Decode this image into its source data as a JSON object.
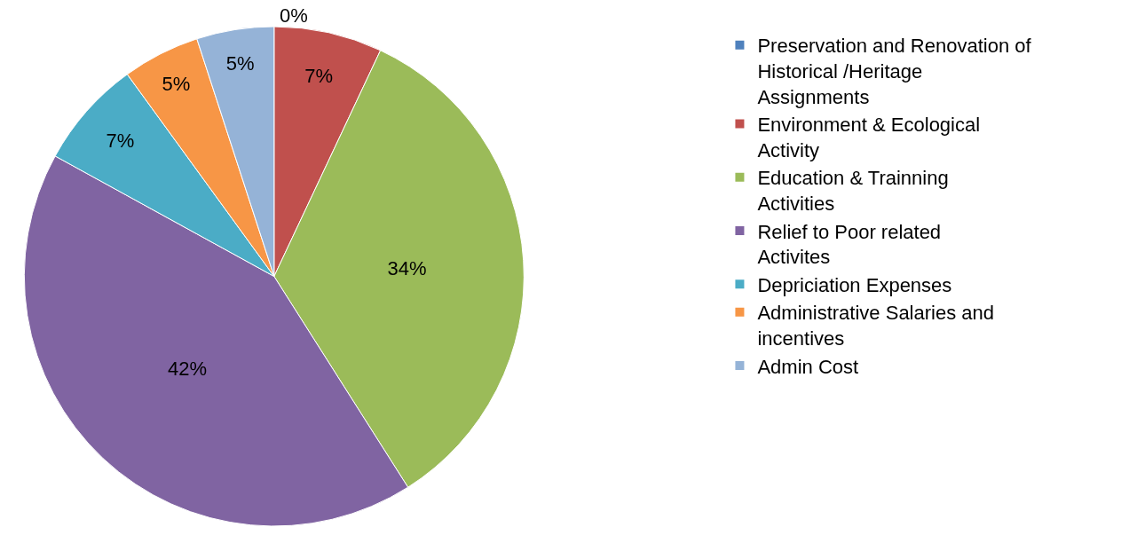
{
  "chart_data": {
    "type": "pie",
    "categories": [
      "Preservation and Renovation of Historical /Heritage Assignments",
      "Environment & Ecological Activity",
      "Education & Trainning Activities",
      "Relief to Poor related Activites",
      "Depriciation Expenses",
      "Administrative Salaries and incentives",
      "Admin Cost"
    ],
    "values": [
      0,
      7,
      34,
      42,
      7,
      5,
      5
    ],
    "value_labels": [
      "0%",
      "7%",
      "34%",
      "42%",
      "7%",
      "5%",
      "5%"
    ],
    "colors": [
      "#4f81bd",
      "#c0504d",
      "#9bbb59",
      "#8064a2",
      "#4bacc6",
      "#f79646",
      "#95b3d7"
    ],
    "legend": "right"
  }
}
